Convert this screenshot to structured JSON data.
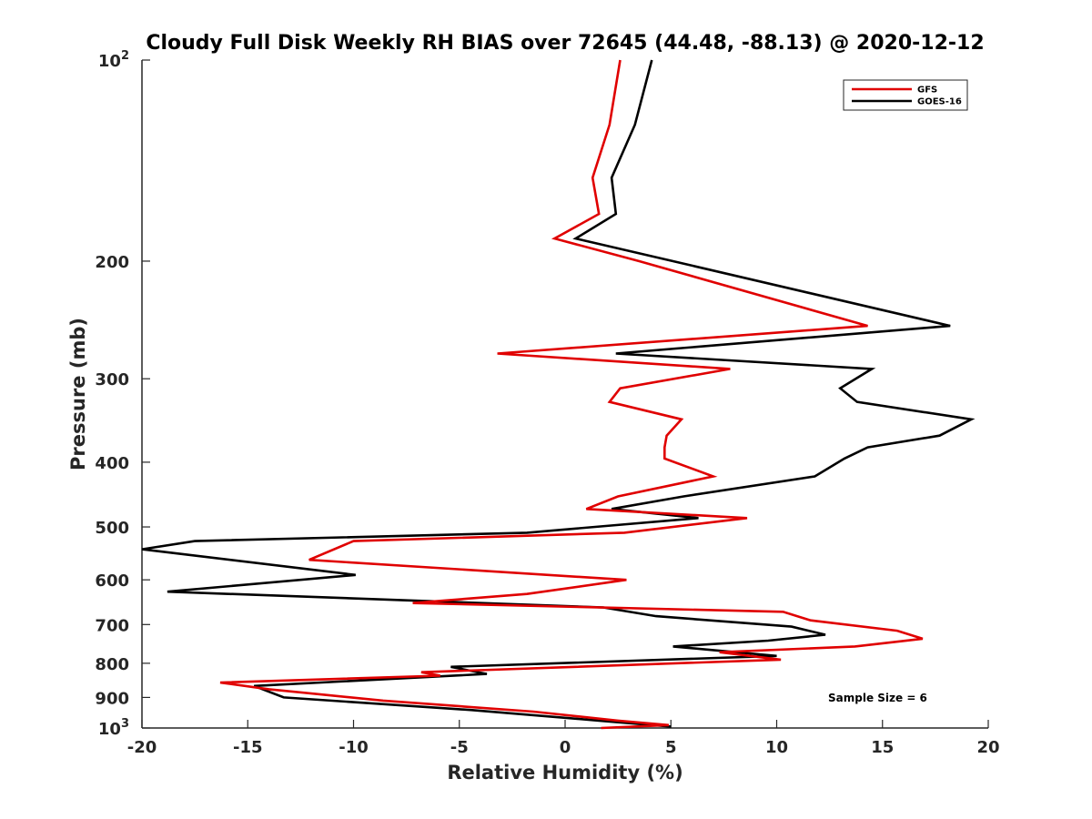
{
  "chart_data": {
    "type": "line",
    "title": "Cloudy Full Disk Weekly RH BIAS over 72645 (44.48, -88.13) @ 2020-12-12",
    "xlabel": "Relative Humidity (%)",
    "ylabel": "Pressure (mb)",
    "xlim": [
      -20,
      20
    ],
    "ylim": [
      100,
      1000
    ],
    "yscale": "log",
    "y_reversed": true,
    "xticks": [
      -20,
      -15,
      -10,
      -5,
      0,
      5,
      10,
      15,
      20
    ],
    "xtick_labels": [
      "-20",
      "-15",
      "-10",
      "-5",
      "0",
      "5",
      "10",
      "15",
      "20"
    ],
    "yticks": [
      {
        "value": 100,
        "base": "10",
        "exp": "2"
      },
      {
        "value": 200,
        "label": "200"
      },
      {
        "value": 300,
        "label": "300"
      },
      {
        "value": 400,
        "label": "400"
      },
      {
        "value": 500,
        "label": "500"
      },
      {
        "value": 600,
        "label": "600"
      },
      {
        "value": 700,
        "label": "700"
      },
      {
        "value": 800,
        "label": "800"
      },
      {
        "value": 900,
        "label": "900"
      },
      {
        "value": 1000,
        "base": "10",
        "exp": "3"
      }
    ],
    "grid": false,
    "legend_position": "top-right",
    "annotation": "Sample Size = 6",
    "series": [
      {
        "name": "GFS",
        "color": "#e00000",
        "points": [
          [
            2.6,
            100
          ],
          [
            2.1,
            125
          ],
          [
            1.3,
            150
          ],
          [
            1.6,
            170
          ],
          [
            -0.5,
            185
          ],
          [
            3.5,
            200
          ],
          [
            14.3,
            250
          ],
          [
            -3.2,
            275
          ],
          [
            7.8,
            290
          ],
          [
            2.6,
            310
          ],
          [
            2.1,
            325
          ],
          [
            5.5,
            345
          ],
          [
            4.8,
            365
          ],
          [
            4.7,
            380
          ],
          [
            4.7,
            395
          ],
          [
            7.0,
            420
          ],
          [
            2.5,
            450
          ],
          [
            1.0,
            470
          ],
          [
            8.6,
            485
          ],
          [
            2.8,
            510
          ],
          [
            -10.0,
            525
          ],
          [
            -12.1,
            560
          ],
          [
            2.9,
            600
          ],
          [
            -1.8,
            630
          ],
          [
            -7.2,
            650
          ],
          [
            10.3,
            670
          ],
          [
            11.6,
            690
          ],
          [
            15.7,
            715
          ],
          [
            16.9,
            735
          ],
          [
            13.7,
            755
          ],
          [
            7.3,
            770
          ],
          [
            10.2,
            790
          ],
          [
            -6.8,
            825
          ],
          [
            -5.9,
            835
          ],
          [
            -16.3,
            855
          ],
          [
            -14.0,
            875
          ],
          [
            -8.6,
            910
          ],
          [
            -1.5,
            945
          ],
          [
            2.5,
            975
          ],
          [
            4.9,
            990
          ],
          [
            1.7,
            1000
          ]
        ]
      },
      {
        "name": "GOES-16",
        "color": "#000000",
        "points": [
          [
            4.1,
            100
          ],
          [
            3.3,
            125
          ],
          [
            2.2,
            150
          ],
          [
            2.4,
            170
          ],
          [
            0.5,
            185
          ],
          [
            5.1,
            200
          ],
          [
            18.2,
            250
          ],
          [
            2.4,
            275
          ],
          [
            14.5,
            290
          ],
          [
            13.0,
            310
          ],
          [
            13.8,
            325
          ],
          [
            19.2,
            345
          ],
          [
            17.7,
            365
          ],
          [
            14.3,
            380
          ],
          [
            13.2,
            395
          ],
          [
            11.8,
            420
          ],
          [
            5.6,
            450
          ],
          [
            2.2,
            470
          ],
          [
            6.3,
            485
          ],
          [
            -1.8,
            510
          ],
          [
            -17.5,
            525
          ],
          [
            -20.0,
            540
          ],
          [
            -9.9,
            590
          ],
          [
            -18.8,
            625
          ],
          [
            1.8,
            660
          ],
          [
            4.3,
            680
          ],
          [
            10.7,
            705
          ],
          [
            12.3,
            725
          ],
          [
            9.6,
            740
          ],
          [
            5.1,
            755
          ],
          [
            10.0,
            780
          ],
          [
            -5.4,
            810
          ],
          [
            -3.7,
            830
          ],
          [
            -14.7,
            865
          ],
          [
            -13.3,
            900
          ],
          [
            -4.4,
            940
          ],
          [
            1.6,
            975
          ],
          [
            5.0,
            995
          ]
        ]
      }
    ]
  }
}
